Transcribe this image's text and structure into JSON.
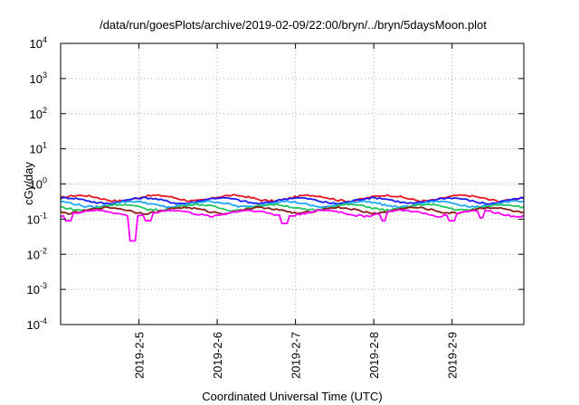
{
  "chart_data": {
    "type": "line",
    "title": "/data/run/goesPlots/archive/2019-02-09/22:00/bryn/../bryn/5daysMoon.plot",
    "xlabel": "Coordinated Universal Time (UTC)",
    "ylabel": "cGy/day",
    "yscale": "log",
    "ylim": [
      0.0001,
      10000
    ],
    "y_ticks": [
      {
        "value": 0.0001,
        "base": "10",
        "exp": "-4"
      },
      {
        "value": 0.001,
        "base": "10",
        "exp": "-3"
      },
      {
        "value": 0.01,
        "base": "10",
        "exp": "-2"
      },
      {
        "value": 0.1,
        "base": "10",
        "exp": "-1"
      },
      {
        "value": 1,
        "base": "10",
        "exp": "0"
      },
      {
        "value": 10,
        "base": "10",
        "exp": "1"
      },
      {
        "value": 100,
        "base": "10",
        "exp": "2"
      },
      {
        "value": 1000,
        "base": "10",
        "exp": "3"
      },
      {
        "value": 10000,
        "base": "10",
        "exp": "4"
      }
    ],
    "xlim": [
      "2019-02-04 00:00",
      "2019-02-09 22:00"
    ],
    "x_ticks": [
      "2019-2-5",
      "2019-2-6",
      "2019-2-7",
      "2019-2-8",
      "2019-2-9"
    ],
    "grid": true,
    "legend": "none",
    "series": [
      {
        "color": "#e8141f",
        "level": 0.4,
        "dips": []
      },
      {
        "color": "#1a1aff",
        "level": 0.34,
        "dips": []
      },
      {
        "color": "#1ea7ff",
        "level": 0.27,
        "dips": []
      },
      {
        "color": "#22c55e",
        "level": 0.22,
        "dips": []
      },
      {
        "color": "#8b1a1a",
        "level": 0.18,
        "dips": []
      },
      {
        "color": "#ff00ff",
        "level": 0.15,
        "dips": [
          {
            "x": "2019-02-04 02:30",
            "y": 0.09
          },
          {
            "x": "2019-02-04 22:00",
            "y": 0.024
          },
          {
            "x": "2019-02-05 03:00",
            "y": 0.09
          },
          {
            "x": "2019-02-06 20:30",
            "y": 0.075
          },
          {
            "x": "2019-02-08 03:00",
            "y": 0.09
          },
          {
            "x": "2019-02-09 00:00",
            "y": 0.09
          },
          {
            "x": "2019-02-09 09:00",
            "y": 0.11
          }
        ]
      }
    ]
  }
}
